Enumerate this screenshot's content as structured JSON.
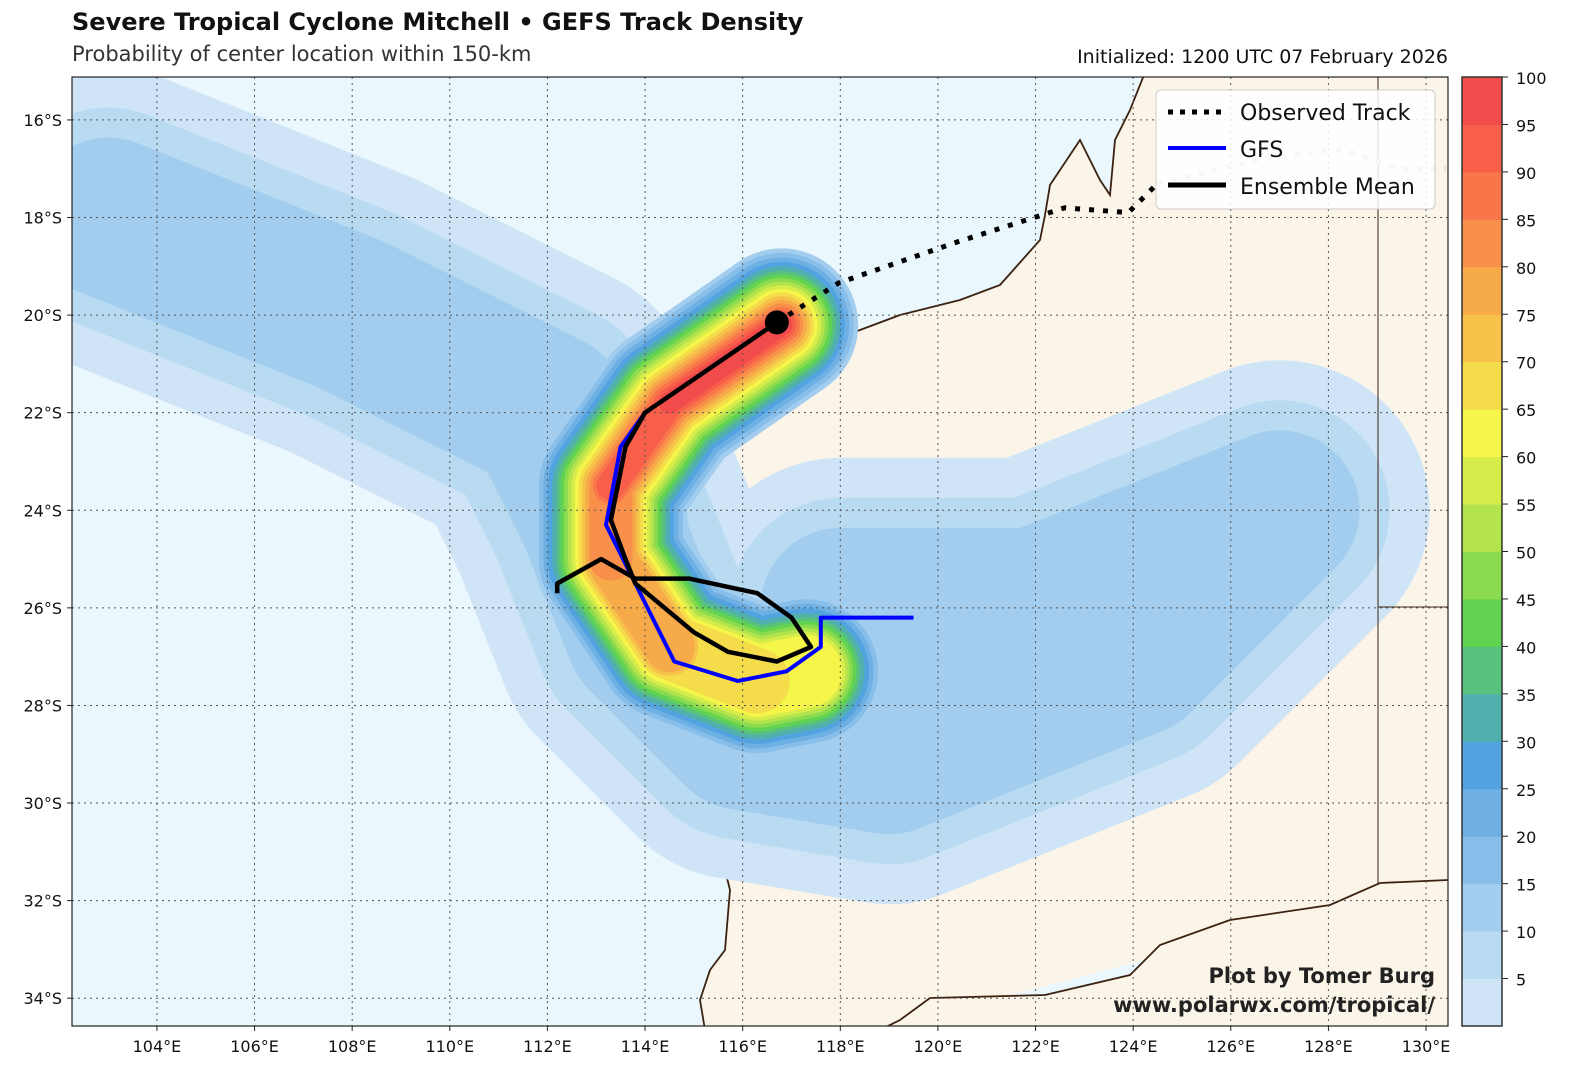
{
  "header": {
    "title": "Severe Tropical Cyclone Mitchell • GEFS Track Density",
    "subtitle": "Probability of center location within 150-km",
    "initialized": "Initialized: 1200 UTC 07 February 2026"
  },
  "credit": {
    "line1": "Plot by Tomer Burg",
    "line2": "www.polarwx.com/tropical/"
  },
  "chart_data": {
    "type": "map",
    "lon_range": [
      102.26,
      130.45
    ],
    "lat_range": [
      -34.57,
      -15.12
    ],
    "lon_ticks": [
      104,
      106,
      108,
      110,
      112,
      114,
      116,
      118,
      120,
      122,
      124,
      126,
      128,
      130
    ],
    "lon_tick_labels": [
      "104°E",
      "106°E",
      "108°E",
      "110°E",
      "112°E",
      "114°E",
      "116°E",
      "118°E",
      "120°E",
      "122°E",
      "124°E",
      "126°E",
      "128°E",
      "130°E"
    ],
    "lat_ticks": [
      -16,
      -18,
      -20,
      -22,
      -24,
      -26,
      -28,
      -30,
      -32,
      -34
    ],
    "lat_tick_labels": [
      "16°S",
      "18°S",
      "20°S",
      "22°S",
      "24°S",
      "26°S",
      "28°S",
      "30°S",
      "32°S",
      "34°S"
    ],
    "colorbar": {
      "levels": [
        5,
        10,
        15,
        20,
        25,
        30,
        35,
        40,
        45,
        50,
        55,
        60,
        65,
        70,
        75,
        80,
        85,
        90,
        95,
        100
      ],
      "labels": [
        "5",
        "10",
        "15",
        "20",
        "25",
        "30",
        "35",
        "40",
        "45",
        "50",
        "55",
        "60",
        "65",
        "70",
        "75",
        "80",
        "85",
        "90",
        "95",
        "100"
      ],
      "colors": [
        "#cfe4f7",
        "#b9dbf1",
        "#a2cdee",
        "#88bfea",
        "#6eb0e4",
        "#52a3e0",
        "#51b0ae",
        "#57c27e",
        "#62d350",
        "#8bdb4e",
        "#b3e44d",
        "#d6ec4b",
        "#f5f54a",
        "#f5dc4a",
        "#f6c24a",
        "#f7aa4a",
        "#f88f4a",
        "#f8764a",
        "#f75f4a",
        "#f24b4b"
      ]
    },
    "legend": [
      {
        "label": "Observed Track",
        "style": "dotted",
        "color": "#000000"
      },
      {
        "label": "GFS",
        "style": "solid",
        "color": "#0000ff"
      },
      {
        "label": "Ensemble Mean",
        "style": "solid",
        "color": "#000000"
      }
    ],
    "observed_track": [
      [
        116.7,
        -20.15
      ],
      [
        117.97,
        -19.34
      ],
      [
        120.4,
        -18.5
      ],
      [
        122.6,
        -17.8
      ],
      [
        123.9,
        -17.9
      ],
      [
        124.5,
        -17.3
      ]
    ],
    "observed_track_past": [
      [
        124.5,
        -17.3
      ],
      [
        126.6,
        -16.8
      ],
      [
        128.3,
        -16.6
      ],
      [
        129.4,
        -17.0
      ],
      [
        130.4,
        -17.0
      ]
    ],
    "gfs_track": [
      [
        116.7,
        -20.15
      ],
      [
        114.0,
        -22.0
      ],
      [
        113.5,
        -22.7
      ],
      [
        113.2,
        -24.3
      ],
      [
        113.8,
        -25.5
      ],
      [
        114.6,
        -27.1
      ],
      [
        115.9,
        -27.5
      ],
      [
        116.9,
        -27.3
      ],
      [
        117.6,
        -26.8
      ],
      [
        117.6,
        -26.2
      ],
      [
        119.5,
        -26.2
      ]
    ],
    "ensemble_mean_track": [
      [
        116.7,
        -20.15
      ],
      [
        114.0,
        -22.0
      ],
      [
        113.6,
        -22.7
      ],
      [
        113.3,
        -24.2
      ],
      [
        113.6,
        -25.0
      ],
      [
        113.8,
        -25.5
      ],
      [
        115.0,
        -26.5
      ],
      [
        115.7,
        -26.9
      ],
      [
        116.7,
        -27.1
      ],
      [
        117.4,
        -26.8
      ],
      [
        117.0,
        -26.2
      ],
      [
        116.3,
        -25.7
      ],
      [
        114.9,
        -25.4
      ],
      [
        113.8,
        -25.4
      ],
      [
        113.1,
        -25.0
      ],
      [
        112.2,
        -25.5
      ],
      [
        112.2,
        -25.7
      ]
    ],
    "current_position": [
      116.7,
      -20.15
    ]
  }
}
